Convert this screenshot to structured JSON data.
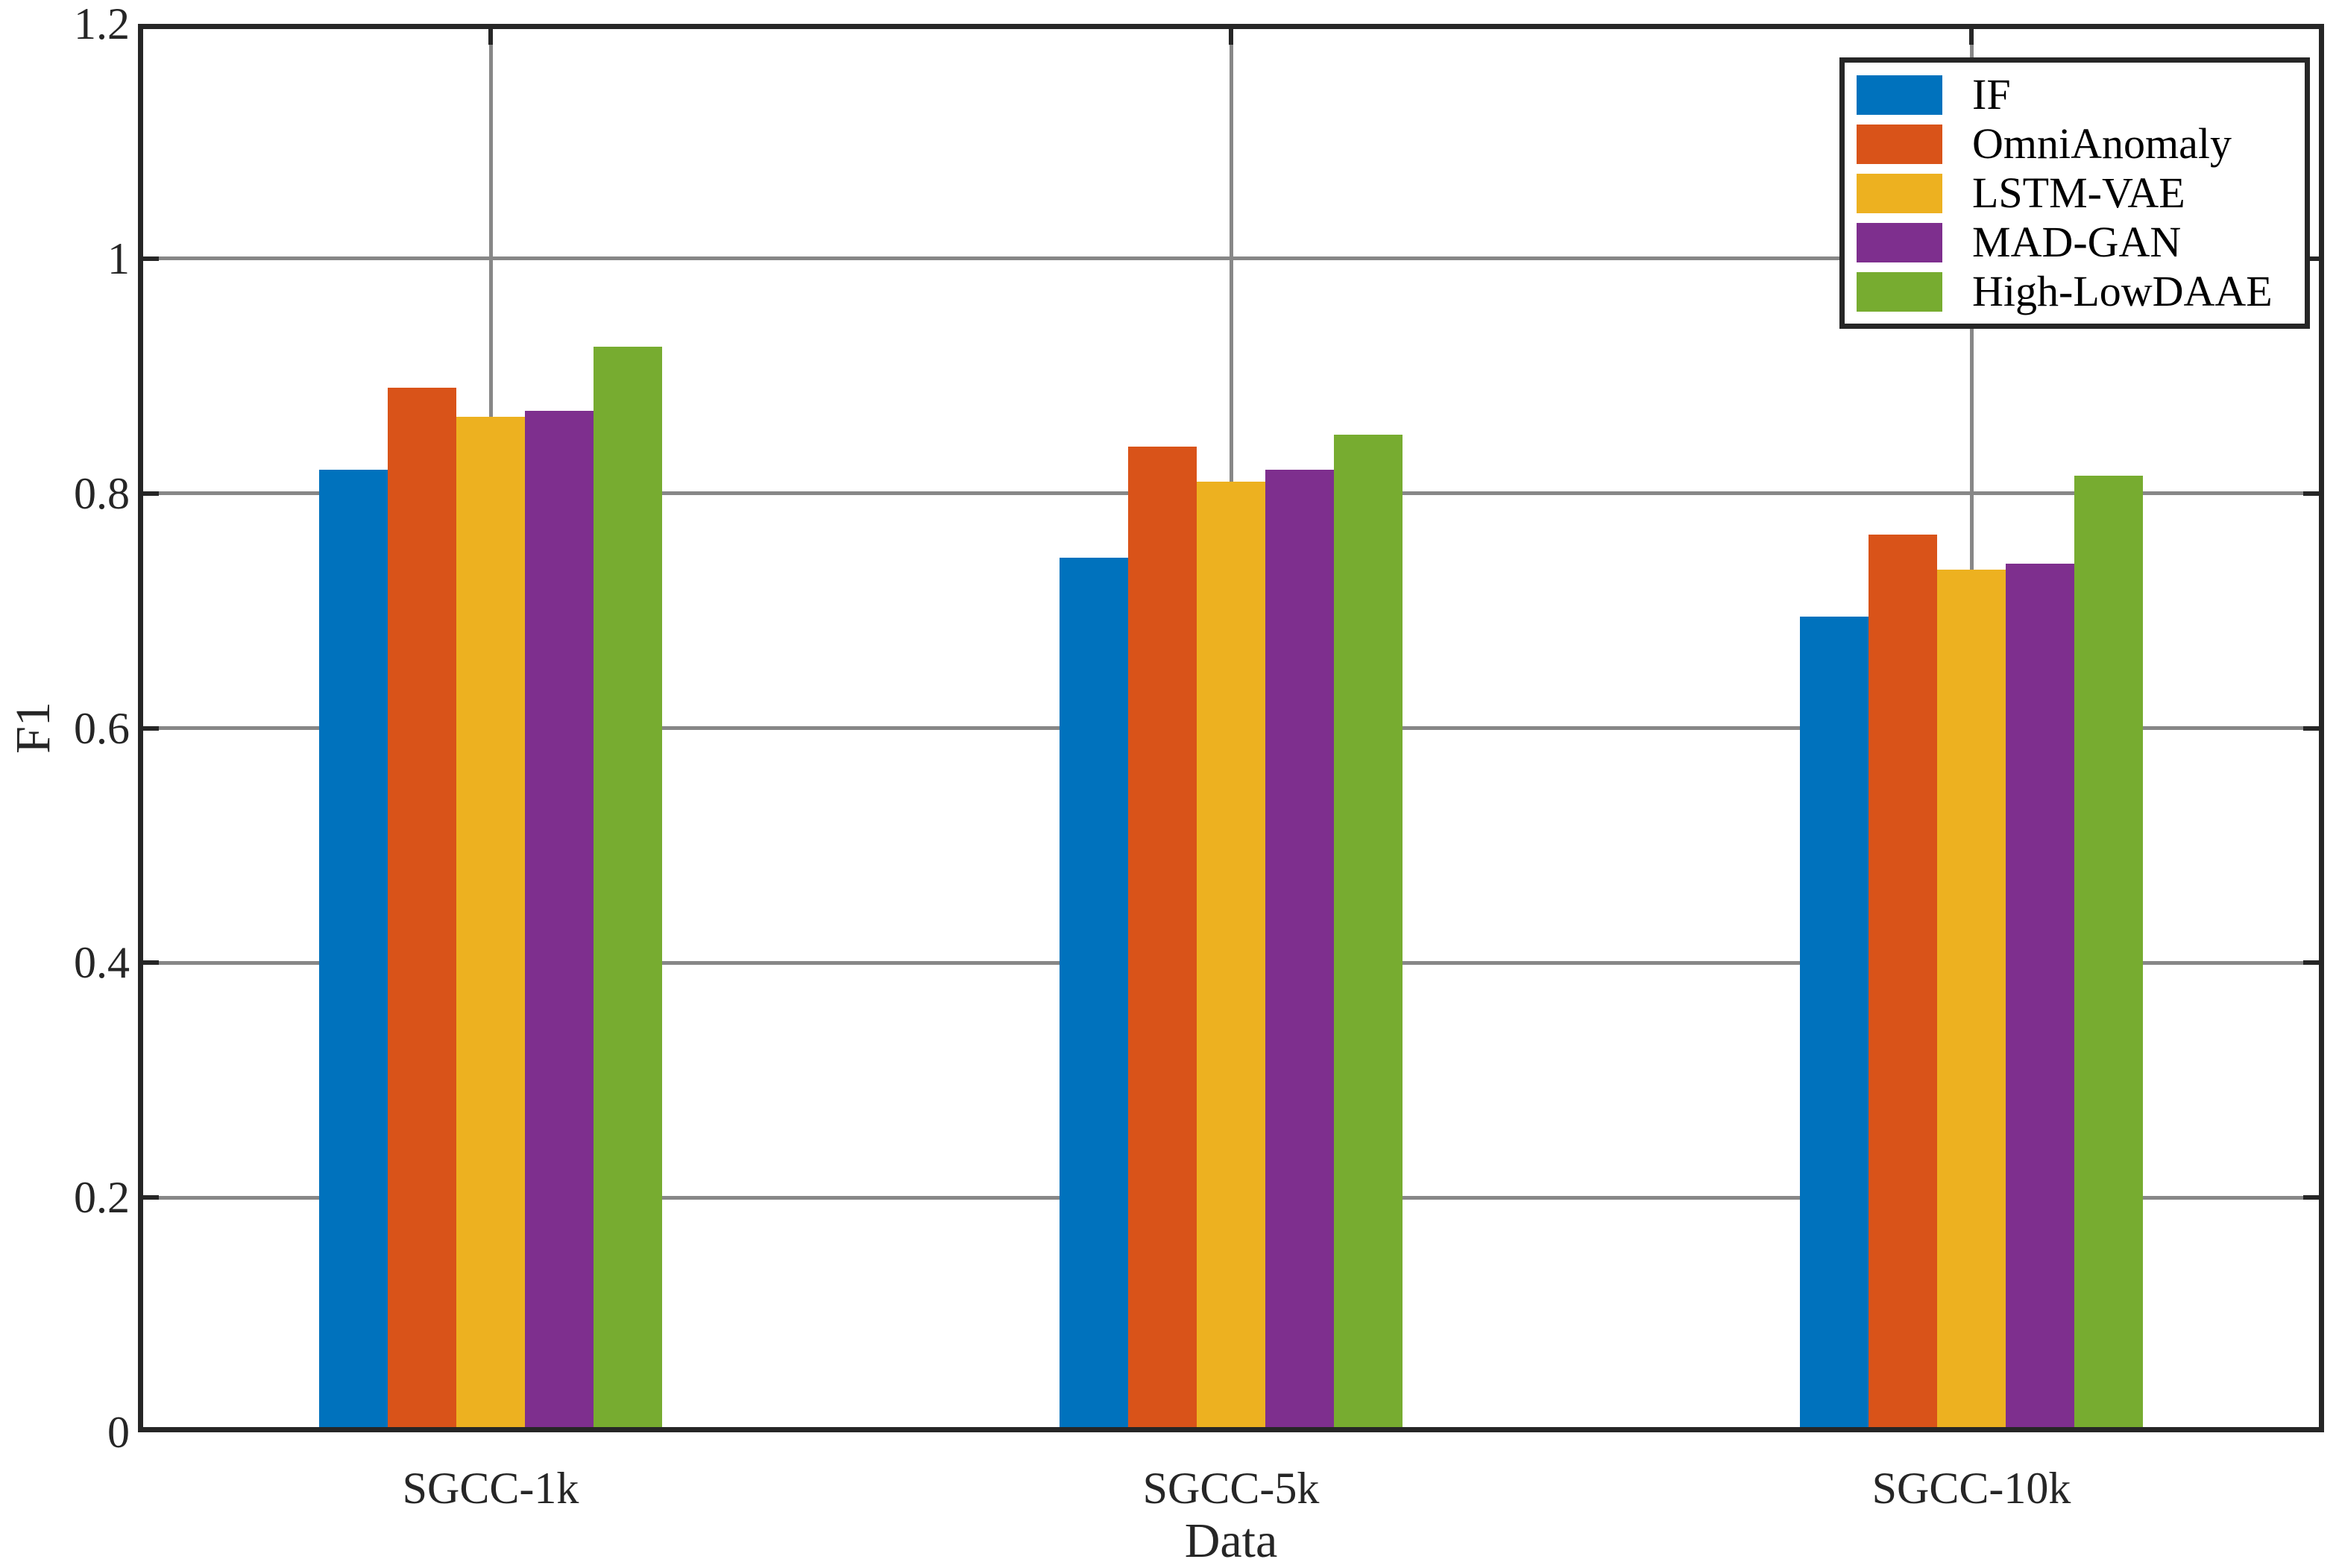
{
  "chart_data": {
    "type": "bar",
    "title": "",
    "categories": [
      "SGCC-1k",
      "SGCC-5k",
      "SGCC-10k"
    ],
    "series": [
      {
        "name": "IF",
        "color": "#0072BD",
        "values": [
          0.82,
          0.745,
          0.695
        ]
      },
      {
        "name": "OmniAnomaly",
        "color": "#D95319",
        "values": [
          0.89,
          0.84,
          0.765
        ]
      },
      {
        "name": "LSTM-VAE",
        "color": "#EDB120",
        "values": [
          0.865,
          0.81,
          0.735
        ]
      },
      {
        "name": "MAD-GAN",
        "color": "#7E2F8E",
        "values": [
          0.87,
          0.82,
          0.74
        ]
      },
      {
        "name": "High-LowDAAE",
        "color": "#77AC30",
        "values": [
          0.925,
          0.85,
          0.815
        ]
      }
    ],
    "xlabel": "Data",
    "ylabel": "F1",
    "ylim": [
      0,
      1.2
    ],
    "ytick_step": 0.2,
    "ytick_labels": [
      "0",
      "0.2",
      "0.4",
      "0.6",
      "0.8",
      "1",
      "1.2"
    ],
    "grid": true,
    "legend_position": "top-right"
  },
  "style": {
    "grid_color": "#878787",
    "axis_color": "#262626",
    "background_color": "#FFFFFF"
  }
}
